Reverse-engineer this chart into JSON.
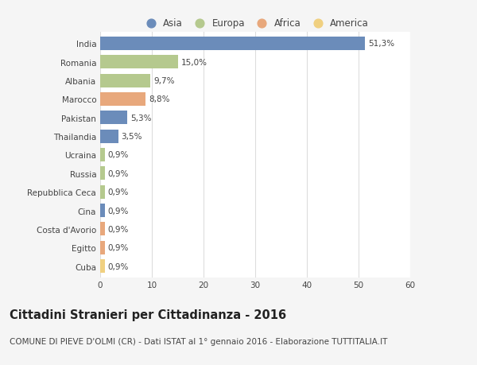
{
  "countries": [
    "India",
    "Romania",
    "Albania",
    "Marocco",
    "Pakistan",
    "Thailandia",
    "Ucraina",
    "Russia",
    "Repubblica Ceca",
    "Cina",
    "Costa d'Avorio",
    "Egitto",
    "Cuba"
  ],
  "values": [
    51.3,
    15.0,
    9.7,
    8.8,
    5.3,
    3.5,
    0.9,
    0.9,
    0.9,
    0.9,
    0.9,
    0.9,
    0.9
  ],
  "labels": [
    "51,3%",
    "15,0%",
    "9,7%",
    "8,8%",
    "5,3%",
    "3,5%",
    "0,9%",
    "0,9%",
    "0,9%",
    "0,9%",
    "0,9%",
    "0,9%",
    "0,9%"
  ],
  "continents": [
    "Asia",
    "Europa",
    "Europa",
    "Africa",
    "Asia",
    "Asia",
    "Europa",
    "Europa",
    "Europa",
    "Asia",
    "Africa",
    "Africa",
    "America"
  ],
  "continent_colors": {
    "Asia": "#6b8cba",
    "Europa": "#b5c98e",
    "Africa": "#e8a87c",
    "America": "#f0d080"
  },
  "legend_order": [
    "Asia",
    "Europa",
    "Africa",
    "America"
  ],
  "xlim": [
    0,
    60
  ],
  "xticks": [
    0,
    10,
    20,
    30,
    40,
    50,
    60
  ],
  "title": "Cittadini Stranieri per Cittadinanza - 2016",
  "subtitle": "COMUNE DI PIEVE D'OLMI (CR) - Dati ISTAT al 1° gennaio 2016 - Elaborazione TUTTITALIA.IT",
  "background_color": "#f5f5f5",
  "bar_background": "#ffffff",
  "grid_color": "#dddddd",
  "text_color": "#444444",
  "title_fontsize": 10.5,
  "subtitle_fontsize": 7.5,
  "label_fontsize": 7.5,
  "tick_fontsize": 7.5,
  "legend_fontsize": 8.5,
  "bar_height": 0.72
}
